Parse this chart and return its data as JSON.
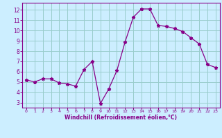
{
  "x": [
    0,
    1,
    2,
    3,
    4,
    5,
    6,
    7,
    8,
    9,
    10,
    11,
    12,
    13,
    14,
    15,
    16,
    17,
    18,
    19,
    20,
    21,
    22,
    23
  ],
  "y": [
    5.2,
    5.0,
    5.3,
    5.3,
    4.9,
    4.8,
    4.6,
    6.2,
    7.0,
    2.9,
    4.3,
    6.1,
    8.9,
    11.3,
    12.1,
    12.1,
    10.5,
    10.4,
    10.2,
    9.9,
    9.3,
    8.7,
    6.7,
    6.4
  ],
  "line_color": "#880088",
  "marker": "*",
  "marker_size": 3.5,
  "bg_color": "#cceeff",
  "grid_color": "#99cccc",
  "xlabel": "Windchill (Refroidissement éolien,°C)",
  "xlabel_color": "#880088",
  "ylabel_ticks": [
    3,
    4,
    5,
    6,
    7,
    8,
    9,
    10,
    11,
    12
  ],
  "xticks": [
    0,
    1,
    2,
    3,
    4,
    5,
    6,
    7,
    8,
    9,
    10,
    11,
    12,
    13,
    14,
    15,
    16,
    17,
    18,
    19,
    20,
    21,
    22,
    23
  ],
  "ylim": [
    2.5,
    12.7
  ],
  "xlim": [
    -0.5,
    23.5
  ],
  "tick_color": "#880088",
  "spine_color": "#880088"
}
